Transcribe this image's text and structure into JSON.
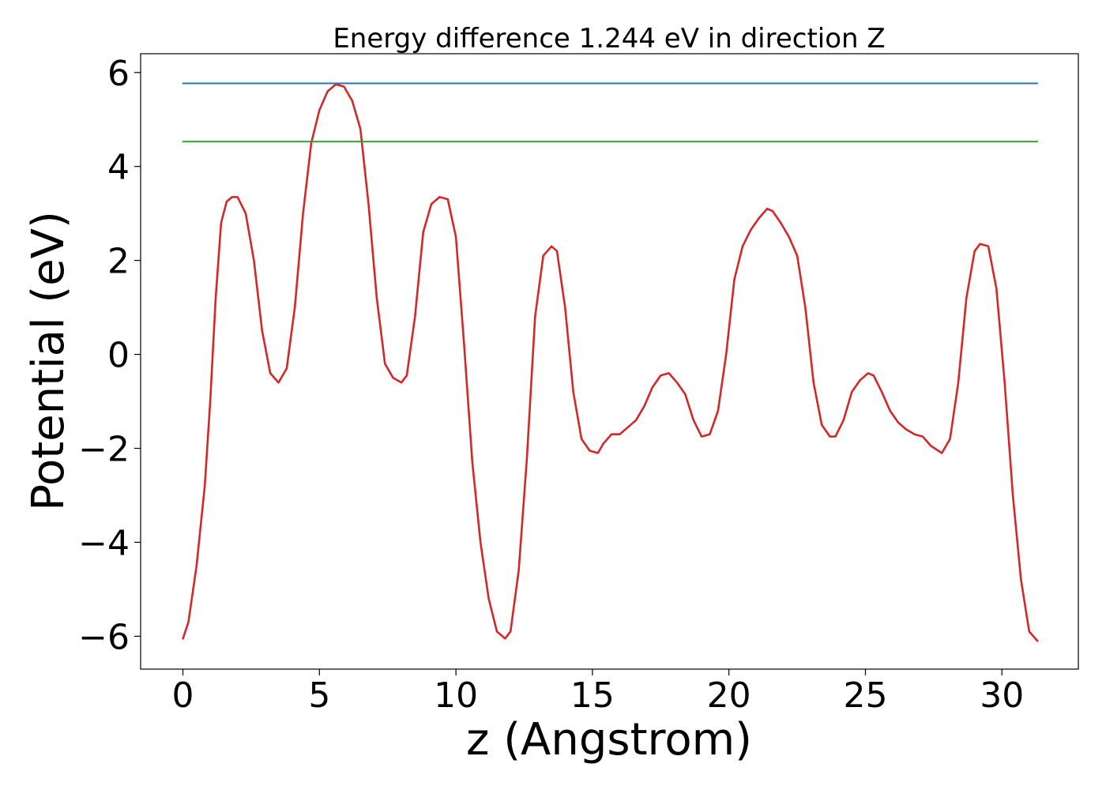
{
  "chart_data": {
    "type": "line",
    "title": "Energy difference 1.244 eV in direction Z",
    "xlabel": "z (Angstrom)",
    "ylabel": "Potential (eV)",
    "xlim": [
      -1.55,
      32.8
    ],
    "ylim": [
      -6.7,
      6.4
    ],
    "xticks": [
      0,
      5,
      10,
      15,
      20,
      25,
      30
    ],
    "yticks": [
      -6,
      -4,
      -2,
      0,
      2,
      4,
      6
    ],
    "xtick_labels": [
      "0",
      "5",
      "10",
      "15",
      "20",
      "25",
      "30"
    ],
    "ytick_labels": [
      "−6",
      "−4",
      "−2",
      "0",
      "2",
      "4",
      "6"
    ],
    "grid": false,
    "series": [
      {
        "color": "#d62728",
        "x": [
          0.0,
          0.2,
          0.5,
          0.8,
          1.0,
          1.2,
          1.4,
          1.6,
          1.8,
          2.0,
          2.3,
          2.6,
          2.9,
          3.2,
          3.5,
          3.8,
          4.1,
          4.4,
          4.7,
          5.0,
          5.3,
          5.6,
          5.9,
          6.2,
          6.5,
          6.8,
          7.1,
          7.4,
          7.7,
          8.0,
          8.2,
          8.5,
          8.8,
          9.1,
          9.4,
          9.7,
          10.0,
          10.3,
          10.6,
          10.9,
          11.2,
          11.5,
          11.8,
          12.0,
          12.3,
          12.6,
          12.9,
          13.2,
          13.5,
          13.7,
          14.0,
          14.3,
          14.6,
          14.9,
          15.2,
          15.4,
          15.7,
          16.0,
          16.3,
          16.6,
          16.9,
          17.2,
          17.5,
          17.8,
          18.1,
          18.4,
          18.7,
          19.0,
          19.3,
          19.6,
          19.9,
          20.2,
          20.5,
          20.8,
          21.1,
          21.4,
          21.6,
          21.9,
          22.2,
          22.5,
          22.8,
          23.1,
          23.4,
          23.7,
          23.9,
          24.2,
          24.5,
          24.8,
          25.1,
          25.3,
          25.6,
          25.9,
          26.2,
          26.5,
          26.8,
          27.1,
          27.4,
          27.8,
          28.1,
          28.4,
          28.7,
          29.0,
          29.2,
          29.5,
          29.8,
          30.1,
          30.4,
          30.7,
          31.0,
          31.3
        ],
        "y": [
          -6.05,
          -5.7,
          -4.5,
          -2.8,
          -1.0,
          1.2,
          2.8,
          3.25,
          3.35,
          3.35,
          3.0,
          2.0,
          0.5,
          -0.4,
          -0.6,
          -0.3,
          1.0,
          3.0,
          4.5,
          5.2,
          5.6,
          5.75,
          5.7,
          5.4,
          4.8,
          3.2,
          1.2,
          -0.2,
          -0.5,
          -0.6,
          -0.45,
          0.8,
          2.6,
          3.2,
          3.35,
          3.3,
          2.5,
          0.2,
          -2.3,
          -4.0,
          -5.2,
          -5.9,
          -6.05,
          -5.9,
          -4.6,
          -2.2,
          0.8,
          2.1,
          2.3,
          2.2,
          1.0,
          -0.8,
          -1.8,
          -2.05,
          -2.1,
          -1.9,
          -1.7,
          -1.7,
          -1.55,
          -1.4,
          -1.1,
          -0.7,
          -0.45,
          -0.4,
          -0.6,
          -0.85,
          -1.4,
          -1.75,
          -1.7,
          -1.2,
          0.0,
          1.6,
          2.3,
          2.65,
          2.9,
          3.1,
          3.05,
          2.8,
          2.5,
          2.1,
          1.0,
          -0.6,
          -1.5,
          -1.75,
          -1.75,
          -1.4,
          -0.8,
          -0.55,
          -0.4,
          -0.45,
          -0.8,
          -1.2,
          -1.45,
          -1.6,
          -1.7,
          -1.75,
          -1.95,
          -2.1,
          -1.8,
          -0.6,
          1.2,
          2.2,
          2.35,
          2.3,
          1.4,
          -0.6,
          -3.0,
          -4.8,
          -5.9,
          -6.1
        ]
      },
      {
        "color": "#1f77b4",
        "x": [
          0.0,
          31.3
        ],
        "y": [
          5.77,
          5.77
        ]
      },
      {
        "color": "#2ca02c",
        "x": [
          0.0,
          31.3
        ],
        "y": [
          4.53,
          4.53
        ]
      }
    ]
  }
}
